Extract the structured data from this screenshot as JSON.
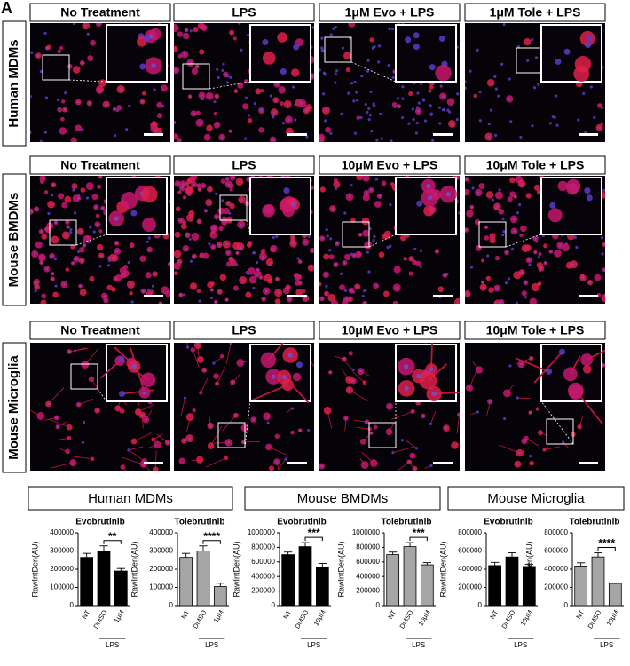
{
  "panel_label": "A",
  "image_rows": [
    {
      "label": "Human MDMs",
      "columns": [
        "No Treatment",
        "LPS",
        "1μM Evo + LPS",
        "1μM Tole + LPS"
      ]
    },
    {
      "label": "Mouse BMDMs",
      "columns": [
        "No Treatment",
        "LPS",
        "10μM Evo + LPS",
        "10μM Tole + LPS"
      ]
    },
    {
      "label": "Mouse Microglia",
      "columns": [
        "No Treatment",
        "LPS",
        "10μM Evo + LPS",
        "10μM Tole + LPS"
      ]
    }
  ],
  "chart_groups": [
    "Human MDMs",
    "Mouse BMDMs",
    "Mouse Microglia"
  ],
  "chart_data": [
    {
      "type": "bar",
      "title": "Evobrutinib",
      "y_label": "RawIntDen(AU)",
      "categories": [
        "NT",
        "DMSO",
        "1μM"
      ],
      "values": [
        265000,
        300000,
        190000
      ],
      "errors": [
        22000,
        28000,
        14000
      ],
      "color": "#000000",
      "ylim": [
        0,
        400000
      ],
      "yticks": [
        0,
        100000,
        200000,
        300000,
        400000
      ],
      "group_label": "LPS",
      "significance": "**",
      "significance_pair": [
        "DMSO",
        "1μM"
      ]
    },
    {
      "type": "bar",
      "title": "Tolebrutinib",
      "y_label": "RawIntDen(AU)",
      "categories": [
        "NT",
        "DMSO",
        "1μM"
      ],
      "values": [
        265000,
        300000,
        105000
      ],
      "errors": [
        22000,
        28000,
        18000
      ],
      "color": "#a6a6a6",
      "ylim": [
        0,
        400000
      ],
      "yticks": [
        0,
        100000,
        200000,
        300000,
        400000
      ],
      "group_label": "LPS",
      "significance": "****",
      "significance_pair": [
        "DMSO",
        "1μM"
      ]
    },
    {
      "type": "bar",
      "title": "Evobrutinib",
      "y_label": "RawIntDen(AU)",
      "categories": [
        "NT",
        "DMSO",
        "10μM"
      ],
      "values": [
        700000,
        810000,
        530000
      ],
      "errors": [
        35000,
        55000,
        50000
      ],
      "color": "#000000",
      "ylim": [
        0,
        1000000
      ],
      "yticks": [
        0,
        200000,
        400000,
        600000,
        800000,
        1000000
      ],
      "group_label": "LPS",
      "significance": "***",
      "significance_pair": [
        "DMSO",
        "10μM"
      ]
    },
    {
      "type": "bar",
      "title": "Tolebrutinib",
      "y_label": "RawIntDen(AU)",
      "categories": [
        "NT",
        "DMSO",
        "10μM"
      ],
      "values": [
        700000,
        810000,
        560000
      ],
      "errors": [
        35000,
        55000,
        30000
      ],
      "color": "#a6a6a6",
      "ylim": [
        0,
        1000000
      ],
      "yticks": [
        0,
        200000,
        400000,
        600000,
        800000,
        1000000
      ],
      "group_label": "LPS",
      "significance": "***",
      "significance_pair": [
        "DMSO",
        "10μM"
      ]
    },
    {
      "type": "bar",
      "title": "Evobrutinib",
      "y_label": "RawIntDen(AU)",
      "categories": [
        "NT",
        "DMSO",
        "10μM"
      ],
      "values": [
        440000,
        535000,
        430000
      ],
      "errors": [
        35000,
        45000,
        25000
      ],
      "color": "#000000",
      "ylim": [
        0,
        800000
      ],
      "yticks": [
        0,
        200000,
        400000,
        600000,
        800000
      ],
      "group_label": "LPS"
    },
    {
      "type": "bar",
      "title": "Tolebrutinib",
      "y_label": "RawIntDen(AU)",
      "categories": [
        "NT",
        "DMSO",
        "10μM"
      ],
      "values": [
        435000,
        535000,
        245000
      ],
      "errors": [
        35000,
        45000,
        0
      ],
      "color": "#a6a6a6",
      "ylim": [
        0,
        800000
      ],
      "yticks": [
        0,
        200000,
        400000,
        600000,
        800000
      ],
      "group_label": "LPS",
      "significance": "****",
      "significance_pair": [
        "DMSO",
        "10μM"
      ]
    }
  ]
}
